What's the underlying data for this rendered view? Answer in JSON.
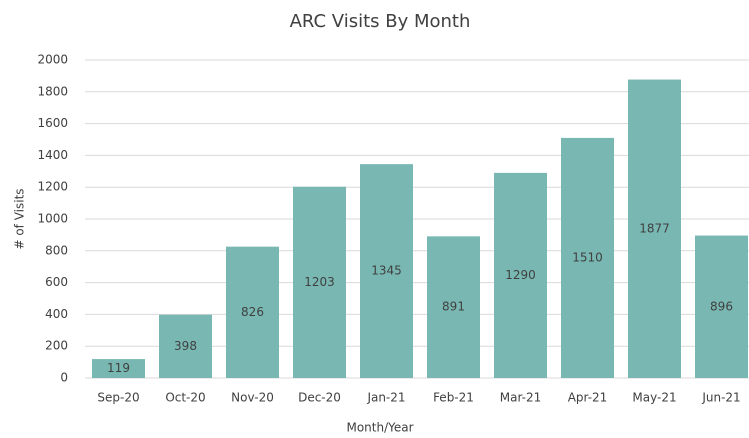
{
  "chart_data": {
    "type": "bar",
    "title": "ARC Visits By Month",
    "x_label": "Month/Year",
    "y_label": "# of Visits",
    "categories": [
      "Sep-20",
      "Oct-20",
      "Nov-20",
      "Dec-20",
      "Jan-21",
      "Feb-21",
      "Mar-21",
      "Apr-21",
      "May-21",
      "Jun-21"
    ],
    "values": [
      119,
      398,
      826,
      1203,
      1345,
      891,
      1290,
      1510,
      1877,
      896
    ],
    "color": "#79b8b2",
    "ylim": [
      0,
      2000
    ],
    "yticks": [
      0,
      200,
      400,
      600,
      800,
      1000,
      1200,
      1400,
      1600,
      1800,
      2000
    ],
    "grid": true
  }
}
